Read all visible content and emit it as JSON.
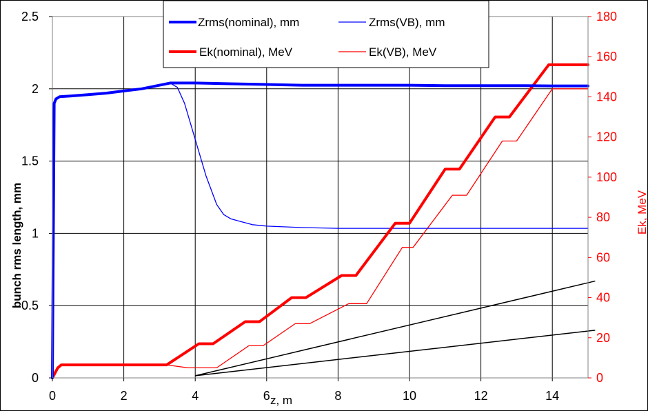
{
  "chart_data": {
    "type": "line",
    "xlabel": "z, m",
    "ylabel": "bunch rms length, mm",
    "y2label": "Ek, MeV",
    "xlim": [
      0,
      15
    ],
    "ylim": [
      0,
      2.5
    ],
    "y2lim": [
      0,
      180
    ],
    "x_ticks": [
      "0",
      "2",
      "4",
      "6",
      "8",
      "10",
      "12",
      "14"
    ],
    "y_ticks": [
      "0",
      "0.5",
      "1",
      "1.5",
      "2",
      "2.5"
    ],
    "y2_ticks": [
      "0",
      "20",
      "40",
      "60",
      "80",
      "100",
      "120",
      "140",
      "160",
      "180"
    ],
    "grid": true,
    "legend_position": "top-center",
    "colors": {
      "zrms": "#0000ff",
      "ek": "#ff0000",
      "right_axis": "#ff0000",
      "guide_lines": "#000000"
    },
    "series": [
      {
        "name": "Zrms(nominal), mm",
        "axis": "left",
        "width": "thick",
        "x": [
          0,
          0.05,
          0.1,
          0.2,
          0.5,
          1,
          1.5,
          2,
          2.5,
          3,
          3.3,
          3.6,
          4,
          5,
          6,
          7,
          8,
          9,
          10,
          11,
          12,
          13,
          14,
          15
        ],
        "y": [
          0,
          1.9,
          1.93,
          1.945,
          1.95,
          1.96,
          1.97,
          1.985,
          2.0,
          2.025,
          2.04,
          2.04,
          2.04,
          2.035,
          2.03,
          2.025,
          2.025,
          2.025,
          2.025,
          2.022,
          2.022,
          2.022,
          2.02,
          2.02
        ]
      },
      {
        "name": "Zrms(VB), mm",
        "axis": "left",
        "width": "thin",
        "x": [
          0,
          0.05,
          0.1,
          0.2,
          0.5,
          1,
          1.5,
          2,
          2.5,
          3,
          3.3,
          3.5,
          3.7,
          4.0,
          4.3,
          4.6,
          4.8,
          5.0,
          5.3,
          5.6,
          6.0,
          7.0,
          8.0,
          10,
          12,
          14,
          15
        ],
        "y": [
          0,
          1.9,
          1.93,
          1.945,
          1.95,
          1.96,
          1.97,
          1.985,
          2.0,
          2.025,
          2.04,
          2.01,
          1.9,
          1.65,
          1.4,
          1.2,
          1.13,
          1.1,
          1.08,
          1.06,
          1.05,
          1.04,
          1.035,
          1.035,
          1.035,
          1.035,
          1.035
        ]
      },
      {
        "name": "Ek(nominal), MeV",
        "axis": "right",
        "width": "thick",
        "x": [
          0,
          0.15,
          0.25,
          3.2,
          4.1,
          4.5,
          5.4,
          5.8,
          6.7,
          7.1,
          8.1,
          8.5,
          9.6,
          10.0,
          11.0,
          11.4,
          12.4,
          12.8,
          13.9,
          14.0,
          15
        ],
        "y": [
          0,
          5,
          6.5,
          6.5,
          17,
          17,
          28,
          28,
          40,
          40,
          51,
          51,
          77,
          77,
          104,
          104,
          130,
          130,
          156,
          156,
          156
        ]
      },
      {
        "name": "Ek(VB), MeV",
        "axis": "right",
        "width": "thin",
        "x": [
          0,
          0.15,
          0.25,
          3.2,
          3.8,
          4.6,
          5.5,
          5.9,
          6.8,
          7.2,
          8.3,
          8.8,
          9.8,
          10.1,
          11.2,
          11.6,
          12.6,
          13.0,
          14.0,
          15
        ],
        "y": [
          0,
          5,
          6.5,
          6.5,
          5,
          5,
          16,
          16,
          27,
          27,
          37,
          37,
          65,
          65,
          91,
          91,
          118,
          118,
          144,
          144
        ]
      }
    ],
    "guide_lines": [
      {
        "x": [
          4.0,
          15.2
        ],
        "y": [
          0.015,
          0.67
        ]
      },
      {
        "x": [
          4.0,
          15.2
        ],
        "y": [
          0.015,
          0.33
        ]
      }
    ]
  }
}
